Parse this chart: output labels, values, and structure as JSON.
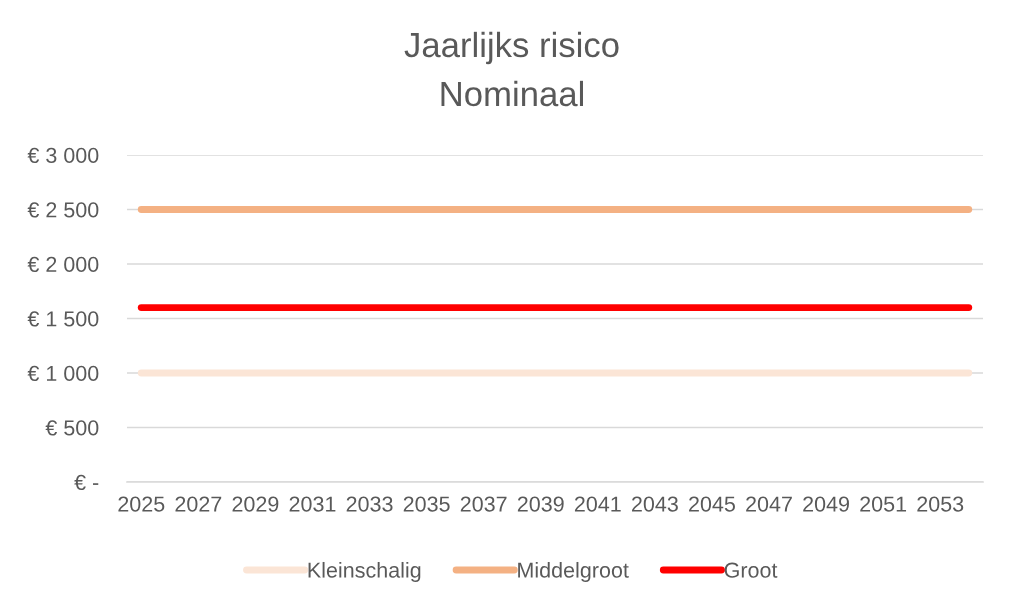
{
  "chart_data": {
    "type": "line",
    "title": "Jaarlijks risico",
    "subtitle": "Nominaal",
    "categories": [
      "2025",
      null,
      "2027",
      null,
      "2029",
      null,
      "2031",
      null,
      "2033",
      null,
      "2035",
      null,
      "2037",
      null,
      "2039",
      null,
      "2041",
      null,
      "2043",
      null,
      "2045",
      null,
      "2047",
      null,
      "2049",
      null,
      "2051",
      null,
      "2053",
      null
    ],
    "series": [
      {
        "name": "Kleinschalig",
        "color": "#fbe5d6",
        "values": [
          1000,
          1000,
          1000,
          1000,
          1000,
          1000,
          1000,
          1000,
          1000,
          1000,
          1000,
          1000,
          1000,
          1000,
          1000,
          1000,
          1000,
          1000,
          1000,
          1000,
          1000,
          1000,
          1000,
          1000,
          1000,
          1000,
          1000,
          1000,
          1000,
          1000
        ]
      },
      {
        "name": "Middelgroot",
        "color": "#f4b183",
        "values": [
          2500,
          2500,
          2500,
          2500,
          2500,
          2500,
          2500,
          2500,
          2500,
          2500,
          2500,
          2500,
          2500,
          2500,
          2500,
          2500,
          2500,
          2500,
          2500,
          2500,
          2500,
          2500,
          2500,
          2500,
          2500,
          2500,
          2500,
          2500,
          2500,
          2500
        ]
      },
      {
        "name": "Groot",
        "color": "#ff0000",
        "values": [
          1600,
          1600,
          1600,
          1600,
          1600,
          1600,
          1600,
          1600,
          1600,
          1600,
          1600,
          1600,
          1600,
          1600,
          1600,
          1600,
          1600,
          1600,
          1600,
          1600,
          1600,
          1600,
          1600,
          1600,
          1600,
          1600,
          1600,
          1600,
          1600,
          1600
        ]
      }
    ],
    "ylim": [
      0,
      3000
    ],
    "yticks": [
      {
        "value": 0,
        "label": "€ -"
      },
      {
        "value": 500,
        "label": "€ 500"
      },
      {
        "value": 1000,
        "label": "€ 1 000"
      },
      {
        "value": 1500,
        "label": "€ 1 500"
      },
      {
        "value": 2000,
        "label": "€ 2 000"
      },
      {
        "value": 2500,
        "label": "€ 2 500"
      },
      {
        "value": 3000,
        "label": "€ 3 000"
      }
    ],
    "grid": "y",
    "legend": "bottom",
    "line_style": "solid"
  }
}
